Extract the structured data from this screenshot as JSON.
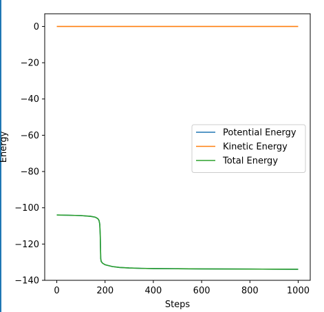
{
  "chart_data": {
    "type": "line",
    "title": "",
    "xlabel": "Steps",
    "ylabel": "Energy",
    "xlim": [
      -50,
      1050
    ],
    "ylim": [
      -140,
      7
    ],
    "xticks": [
      0,
      200,
      400,
      600,
      800,
      1000
    ],
    "yticks": [
      0,
      -20,
      -40,
      -60,
      -80,
      -100,
      -120,
      -140
    ],
    "xtick_labels": [
      "0",
      "200",
      "400",
      "600",
      "800",
      "1000"
    ],
    "ytick_labels": [
      "0",
      "−20",
      "−40",
      "−60",
      "−80",
      "−100",
      "−120",
      "−140"
    ],
    "grid": false,
    "legend": "center-right",
    "series": [
      {
        "name": "Potential Energy",
        "color": "#1f77b4",
        "x": [
          0,
          50,
          100,
          140,
          160,
          170,
          175,
          178,
          180,
          182,
          184,
          190,
          200,
          230,
          260,
          300,
          350,
          400,
          500,
          600,
          700,
          800,
          900,
          1000
        ],
        "y": [
          -104,
          -104.1,
          -104.3,
          -104.7,
          -105.2,
          -106,
          -107,
          -109,
          -115,
          -128,
          -129.6,
          -130.6,
          -131.4,
          -132.4,
          -132.9,
          -133.2,
          -133.4,
          -133.5,
          -133.6,
          -133.7,
          -133.75,
          -133.8,
          -133.85,
          -133.9
        ]
      },
      {
        "name": "Kinetic Energy",
        "color": "#ff7f0e",
        "x": [
          0,
          1000
        ],
        "y": [
          0,
          0
        ]
      },
      {
        "name": "Total Energy",
        "color": "#2ca02c",
        "x": [
          0,
          50,
          100,
          140,
          160,
          170,
          175,
          178,
          180,
          182,
          184,
          190,
          200,
          230,
          260,
          300,
          350,
          400,
          500,
          600,
          700,
          800,
          900,
          1000
        ],
        "y": [
          -104,
          -104.1,
          -104.3,
          -104.7,
          -105.2,
          -106,
          -107,
          -109,
          -115,
          -128,
          -129.6,
          -130.6,
          -131.4,
          -132.4,
          -132.9,
          -133.2,
          -133.4,
          -133.5,
          -133.6,
          -133.7,
          -133.75,
          -133.8,
          -133.85,
          -133.9
        ]
      }
    ]
  }
}
